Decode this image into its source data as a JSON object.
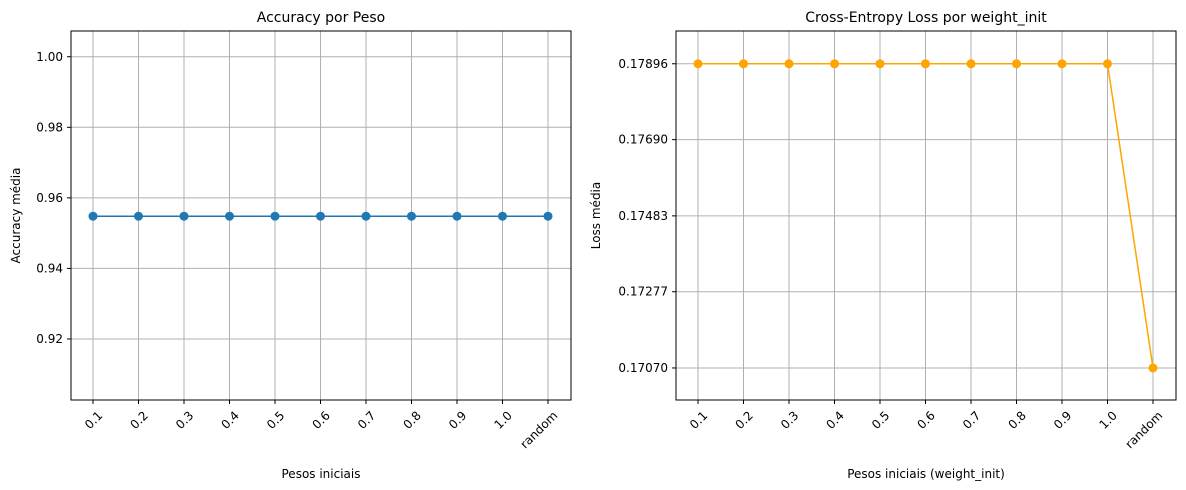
{
  "chart_data": [
    {
      "type": "line",
      "title": "Accuracy por Peso",
      "xlabel": "Pesos iniciais",
      "ylabel": "Accuracy média",
      "categories": [
        "0.1",
        "0.2",
        "0.3",
        "0.4",
        "0.5",
        "0.6",
        "0.7",
        "0.8",
        "0.9",
        "1.0",
        "random"
      ],
      "yticks": [
        "0.92",
        "0.94",
        "0.96",
        "0.98",
        "1.00"
      ],
      "ylim": [
        0.9027,
        1.0073
      ],
      "grid": true,
      "series": [
        {
          "color": "#1f77b4",
          "marker": "circle",
          "values": [
            0.9548,
            0.9548,
            0.9548,
            0.9548,
            0.9548,
            0.9548,
            0.9548,
            0.9548,
            0.9548,
            0.9548,
            0.9548
          ]
        }
      ]
    },
    {
      "type": "line",
      "title": "Cross-Entropy Loss por weight_init",
      "xlabel": "Pesos iniciais (weight_init)",
      "ylabel": "Loss média",
      "categories": [
        "0.1",
        "0.2",
        "0.3",
        "0.4",
        "0.5",
        "0.6",
        "0.7",
        "0.8",
        "0.9",
        "1.0",
        "random"
      ],
      "yticks": [
        "0.17070",
        "0.17277",
        "0.17483",
        "0.17690",
        "0.17896"
      ],
      "ylim": [
        0.16983,
        0.17985
      ],
      "grid": true,
      "series": [
        {
          "color": "#ffa500",
          "marker": "circle",
          "values": [
            0.17896,
            0.17896,
            0.17896,
            0.17896,
            0.17896,
            0.17896,
            0.17896,
            0.17896,
            0.17896,
            0.17896,
            0.1707
          ]
        }
      ]
    }
  ]
}
